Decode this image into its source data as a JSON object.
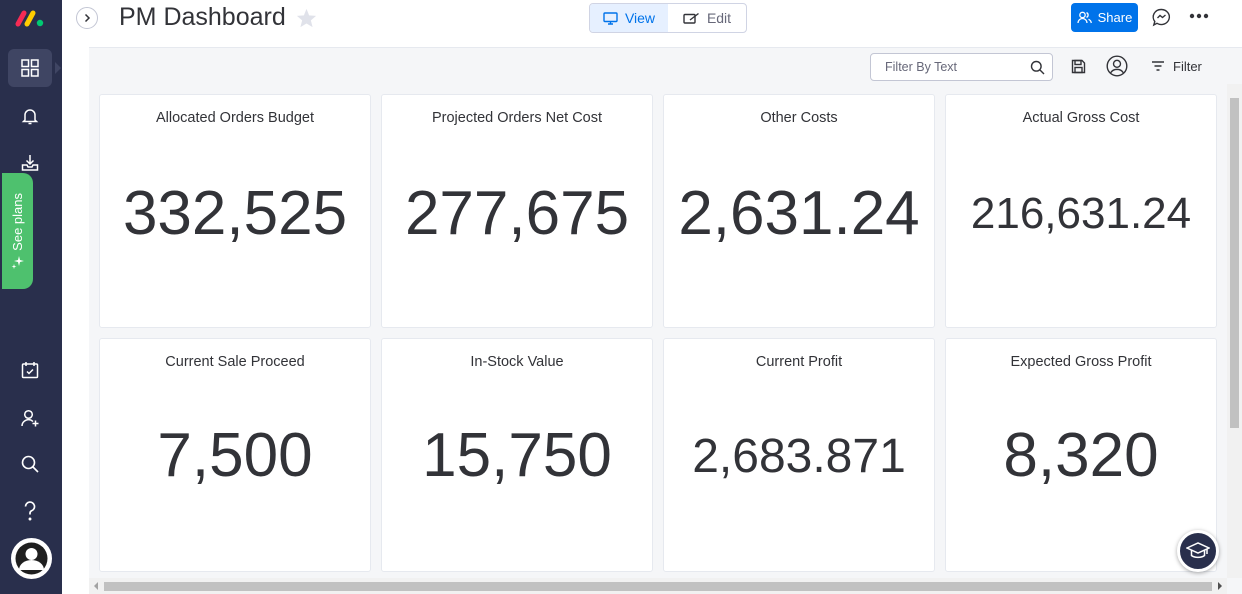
{
  "header": {
    "title": "PM Dashboard",
    "view_label": "View",
    "edit_label": "Edit",
    "share_label": "Share"
  },
  "sidebar": {
    "see_plans_label": "See plans",
    "items": [
      {
        "icon": "dashboard-grid-icon"
      },
      {
        "icon": "bell-icon"
      },
      {
        "icon": "inbox-download-icon"
      },
      {
        "icon": "calendar-check-icon"
      },
      {
        "icon": "add-user-icon"
      },
      {
        "icon": "search-icon"
      },
      {
        "icon": "help-icon"
      }
    ]
  },
  "toolbar": {
    "filter_placeholder": "Filter By Text",
    "filter_label": "Filter"
  },
  "widgets": [
    {
      "title": "Allocated Orders Budget",
      "value": "332,525"
    },
    {
      "title": "Projected Orders Net Cost",
      "value": "277,675"
    },
    {
      "title": "Other Costs",
      "value": "2,631.24"
    },
    {
      "title": "Actual Gross Cost",
      "value": "216,631.24"
    },
    {
      "title": "Current Sale Proceed",
      "value": "7,500"
    },
    {
      "title": "In-Stock Value",
      "value": "15,750"
    },
    {
      "title": "Current Profit",
      "value": "2,683.871"
    },
    {
      "title": "Expected Gross Profit",
      "value": "8,320"
    }
  ],
  "colors": {
    "rail": "#292f4c",
    "accent": "#0073ea",
    "see_plans": "#4ec16e"
  }
}
